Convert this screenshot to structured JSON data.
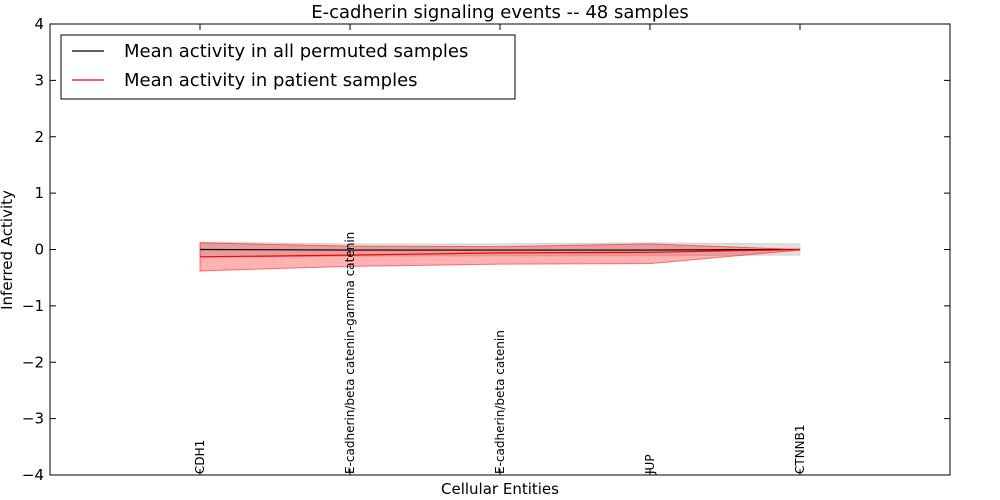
{
  "chart_data": {
    "type": "line",
    "title": "E-cadherin signaling events -- 48 samples",
    "xlabel": "Cellular Entities",
    "ylabel": "Inferred Activity",
    "ylim": [
      -4,
      4
    ],
    "yticks": [
      -4,
      -3,
      -2,
      -1,
      0,
      1,
      2,
      3,
      4
    ],
    "ytick_labels": [
      "−4",
      "−3",
      "−2",
      "−1",
      "0",
      "1",
      "2",
      "3",
      "4"
    ],
    "xlim": [
      -1,
      5
    ],
    "categories": [
      "CDH1",
      "E-cadherin/beta catenin-gamma catenin",
      "E-cadherin/beta catenin",
      "JUP",
      "CTNNB1"
    ],
    "legend_position": "top-left",
    "grid": false,
    "series": [
      {
        "name": "Mean activity in all permuted samples",
        "color": "#000000",
        "band_color": "#bbbbbb",
        "values": [
          0.0,
          -0.01,
          -0.01,
          -0.01,
          0.0
        ],
        "band_upper": [
          0.13,
          0.1,
          0.1,
          0.12,
          0.1
        ],
        "band_lower": [
          -0.13,
          -0.12,
          -0.11,
          -0.11,
          -0.1
        ]
      },
      {
        "name": "Mean activity in patient samples",
        "color": "#ff0000",
        "band_color": "#ff0000",
        "values": [
          -0.13,
          -0.1,
          -0.06,
          -0.05,
          0.0
        ],
        "band_upper": [
          0.12,
          0.06,
          0.05,
          0.1,
          0.0
        ],
        "band_lower": [
          -0.38,
          -0.3,
          -0.26,
          -0.25,
          -0.01
        ]
      }
    ]
  }
}
